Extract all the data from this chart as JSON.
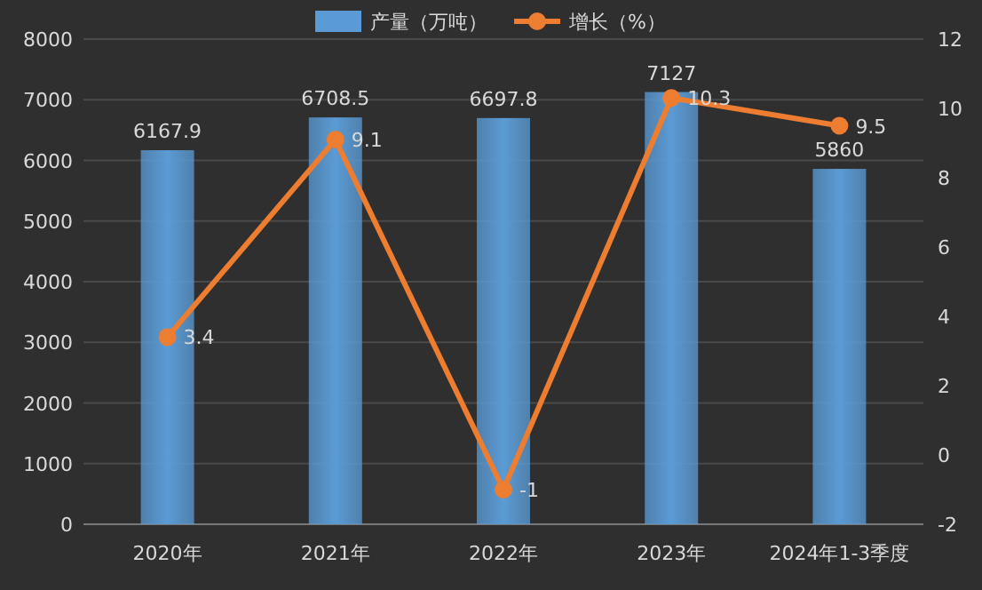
{
  "chart_data": {
    "type": "bar",
    "categories": [
      "2020年",
      "2021年",
      "2022年",
      "2023年",
      "2024年1-3季度"
    ],
    "series": [
      {
        "name": "产量（万吨）",
        "color": "#5b9bd5",
        "values": [
          6167.9,
          6708.5,
          6697.8,
          7127,
          5860
        ]
      },
      {
        "name": "增长（%）",
        "type": "line",
        "axis": "y2",
        "color": "#ed7d31",
        "marker": "circle",
        "values": [
          3.4,
          9.1,
          -1,
          10.3,
          9.5
        ]
      }
    ],
    "ylim": [
      0,
      8000
    ],
    "yticks": [
      0,
      1000,
      2000,
      3000,
      4000,
      5000,
      6000,
      7000,
      8000
    ],
    "y2lim": [
      -2,
      12
    ],
    "y2ticks": [
      -2,
      0,
      2,
      4,
      6,
      8,
      10,
      12
    ],
    "grid": "y",
    "legend": "top",
    "data_labels": true
  }
}
